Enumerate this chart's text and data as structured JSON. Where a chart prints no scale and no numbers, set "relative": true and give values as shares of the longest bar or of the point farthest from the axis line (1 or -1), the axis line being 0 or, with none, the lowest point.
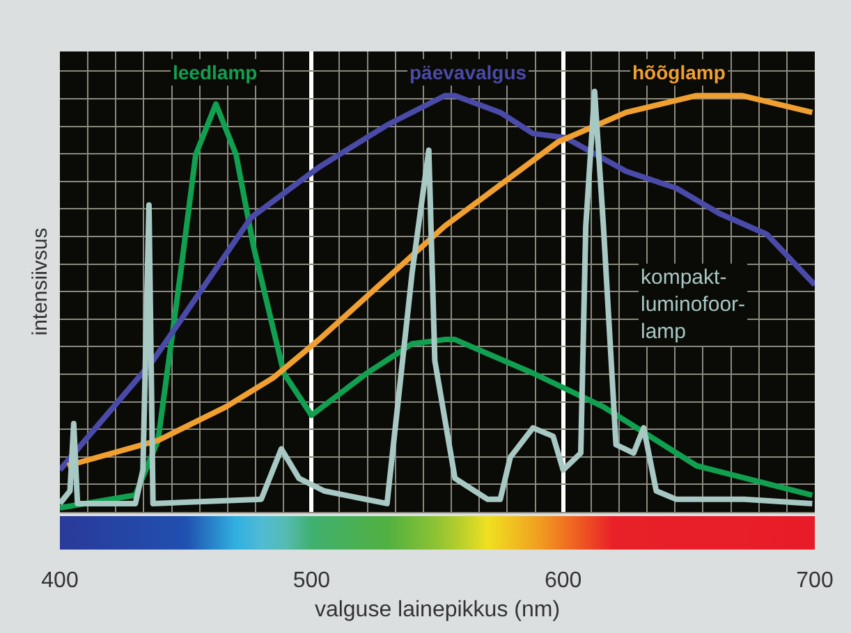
{
  "chart_data": {
    "type": "line",
    "relative": true,
    "xlabel": "valguse lainepikkus (nm)",
    "ylabel": "intensiivsus",
    "xlim": [
      400,
      700
    ],
    "xticks": [
      400,
      500,
      600,
      700
    ],
    "grid": true,
    "legend": false,
    "marker": "none",
    "line_style": "solid",
    "series": [
      {
        "name": "leedlamp",
        "color": "#10a050",
        "x": [
          400,
          430,
          439,
          448,
          454,
          462,
          470,
          477,
          489,
          500,
          522,
          540,
          553,
          557,
          588,
          616,
          653,
          699
        ],
        "values": [
          0.01,
          0.04,
          0.17,
          0.57,
          0.85,
          0.97,
          0.85,
          0.63,
          0.33,
          0.23,
          0.33,
          0.4,
          0.41,
          0.41,
          0.33,
          0.25,
          0.11,
          0.04
        ]
      },
      {
        "name": "päevavalgus",
        "color": "#4a4aa8",
        "x": [
          400,
          437,
          476,
          503,
          530,
          553,
          557,
          575,
          588,
          601,
          625,
          645,
          662,
          681,
          700
        ],
        "values": [
          0.1,
          0.36,
          0.7,
          0.82,
          0.92,
          0.99,
          0.99,
          0.95,
          0.9,
          0.89,
          0.81,
          0.77,
          0.71,
          0.66,
          0.54
        ]
      },
      {
        "name": "hõõglamp",
        "color": "#f0a030",
        "x": [
          403,
          439,
          466,
          485,
          503,
          553,
          598,
          625,
          653,
          671,
          699
        ],
        "values": [
          0.11,
          0.17,
          0.25,
          0.32,
          0.41,
          0.68,
          0.88,
          0.95,
          0.99,
          0.99,
          0.95
        ]
      },
      {
        "name": "kompakt-luminofoor-lamp",
        "color": "#a8c8c4",
        "x": [
          400,
          404,
          405.5,
          407,
          430,
          433,
          435.4,
          437,
          480,
          488,
          495,
          505,
          530,
          540,
          546.6,
          549,
          557,
          570,
          575,
          579,
          588,
          596,
          600,
          607,
          609,
          612.5,
          616,
          621,
          628,
          632,
          637,
          645,
          672,
          699
        ],
        "values": [
          0.02,
          0.05,
          0.21,
          0.02,
          0.02,
          0.1,
          0.73,
          0.02,
          0.03,
          0.15,
          0.08,
          0.05,
          0.02,
          0.57,
          0.86,
          0.36,
          0.08,
          0.03,
          0.03,
          0.13,
          0.2,
          0.18,
          0.1,
          0.14,
          0.68,
          1,
          0.68,
          0.16,
          0.14,
          0.2,
          0.05,
          0.03,
          0.03,
          0.02
        ]
      }
    ]
  }
}
